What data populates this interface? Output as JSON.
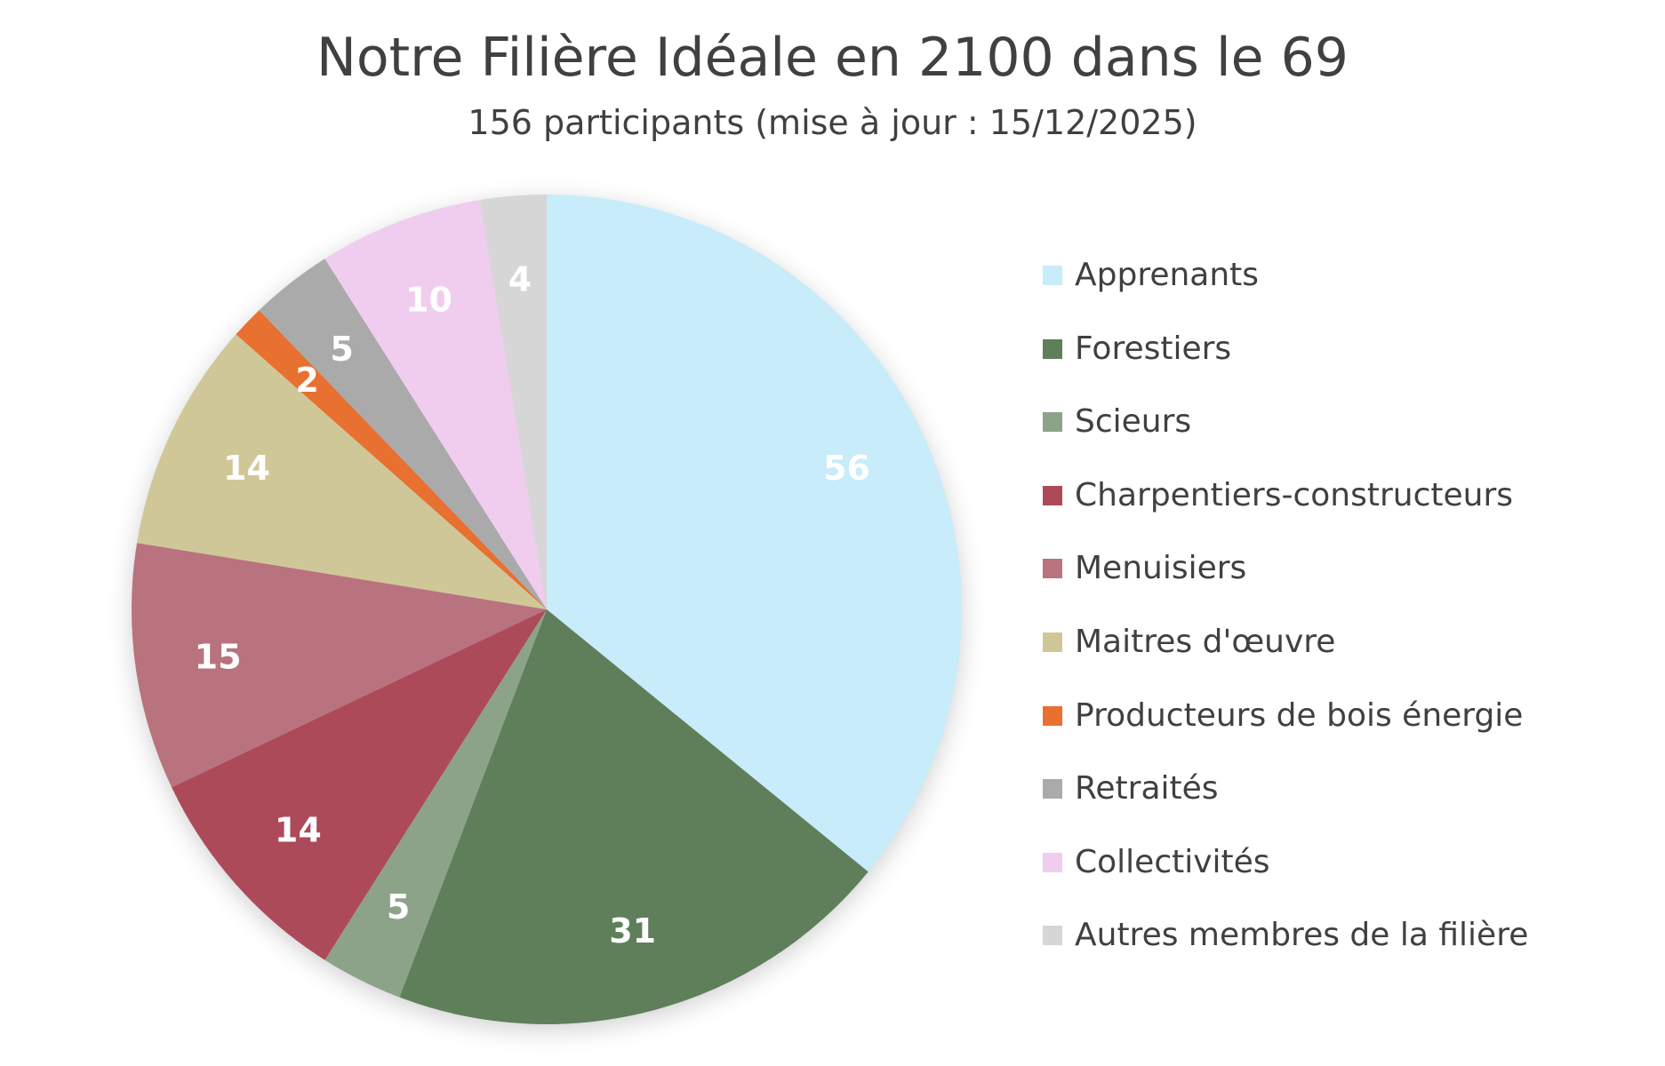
{
  "chart_data": {
    "type": "pie",
    "title": "Notre Filière Idéale en 2100 dans le 69",
    "subtitle": "156 participants (mise à jour : 15/12/2025)",
    "legend_position": "right",
    "start_angle": "top, clockwise",
    "categories": [
      "Apprenants",
      "Forestiers",
      "Scieurs",
      "Charpentiers-constructeurs",
      "Menuisiers",
      "Maitres d'œuvre",
      "Producteurs de bois énergie",
      "Retraités",
      "Collectivités",
      "Autres membres de la filière"
    ],
    "values": [
      56,
      31,
      5,
      14,
      15,
      14,
      2,
      5,
      10,
      4
    ],
    "colors": [
      "#c8ecf9",
      "#5e7f5a",
      "#8ca38a",
      "#ad4a5a",
      "#b9737e",
      "#d0c799",
      "#e87030",
      "#aaaaaa",
      "#f0cdee",
      "#d6d6d6"
    ],
    "label_color": "#ffffff"
  }
}
